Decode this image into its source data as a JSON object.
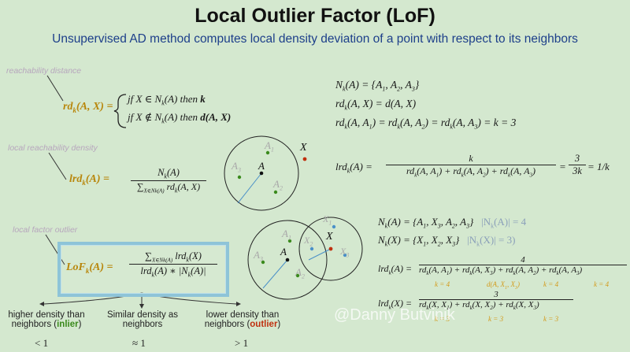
{
  "title": "Local Outlier Factor (LoF)",
  "subtitle": "Unsupervised AD method computes local density deviation of a point with respect to its neighbors",
  "notes": {
    "reachability": "reachability distance",
    "lrd": "local reachability density",
    "lof": "local factor outlier"
  },
  "rd_formula": {
    "lhs": "rd",
    "sub": "k",
    "args": "(A, X) =",
    "case1": "jf X ∈ N",
    "case1_tail": "(A) then",
    "case1_end": "k",
    "case2": "jf X ∉ N",
    "case2_tail": "(A) then",
    "case2_end": "d(A, X)"
  },
  "lrd_formula": {
    "lhs": "lrd",
    "args": "(A) =",
    "num": "N",
    "num_tail": "(A)",
    "den": "∑",
    "den_sub": "X∈N",
    "den_sub2": "k(A)",
    "den_tail": "rd",
    "den_args": "(A, X)"
  },
  "lof_formula": {
    "lhs": "LoF",
    "args": "(A) =",
    "num": "∑",
    "num_sub": "X∈N",
    "num_sub2": "k(A)",
    "num_tail": "lrd",
    "num_args": "(X)",
    "den": "lrd",
    "den_args": "(A) ∗ |N",
    "den_end": "(A)|"
  },
  "right_top": {
    "line1": "N",
    "line1b": "(A) = {A",
    "line1c": ", A",
    "line1d": ", A",
    "line1e": "}",
    "line2": "rd",
    "line2b": "(A, X) = d(A, X)",
    "line3a": "rd",
    "line3b": "(A, A",
    "line3c": ") = rd",
    "line3d": "(A, A",
    "line3e": ") = rd",
    "line3f": "(A, A",
    "line3g": ") = k = 3"
  },
  "right_lrd": {
    "lhs": "lrd",
    "args": "(A) =",
    "num": "k",
    "den": "rd",
    "den_parts": "(A, A",
    "plus": ") + rd",
    "end": ")",
    "eq": "=",
    "frac2_num": "3",
    "frac2_den": "3k",
    "result": "= 1/k"
  },
  "right_mid": {
    "line1": "N",
    "line1b": "(A) = {A",
    "line1c": ", X",
    "line1d": ", A",
    "line1e": ", A",
    "line1f": "}",
    "line1_card": "|N",
    "line1_card_tail": "(A)| = 4",
    "line2": "N",
    "line2b": "(X) = {X",
    "line2c": ", X",
    "line2d": ", X",
    "line2e": "}",
    "line2_card": "|N",
    "line2_card_tail": "(X)| = 3)"
  },
  "right_lrd_A": {
    "lhs": "lrd",
    "args": "(A) =",
    "num": "4",
    "den": "rd",
    "t1": "(A, A",
    "t2": ") + rd",
    "t3": "(A, X",
    "t4": "(A, A",
    "t5": "(A, A",
    "under": [
      "k = 4",
      "d(A, X",
      "k = 4",
      "k = 4"
    ]
  },
  "right_lrd_X": {
    "lhs": "lrd",
    "args": "(X) =",
    "num": "3",
    "den": "rd",
    "t1": "(X, X",
    "t2": ") + rd",
    "t3": "(X, X",
    "under": [
      "k = 3",
      "k = 3",
      "k = 3"
    ]
  },
  "captions": {
    "higher1": "higher density than",
    "higher2": "neighbors (",
    "higher_word": "inlier",
    "higher3": ")",
    "similar1": "Similar density as",
    "similar2": "neighbors",
    "lower1": "lower density than",
    "lower2": "neighbors (",
    "lower_word": "outlier",
    "lower3": ")",
    "lt": "< 1",
    "approx": "≈ 1",
    "gt": "> 1"
  },
  "diagram1": {
    "A": "A",
    "A1": "A",
    "A2": "A",
    "A3": "A",
    "X": "X",
    "s1": "1",
    "s2": "2",
    "s3": "3"
  },
  "diagram2": {
    "A": "A",
    "A1": "A",
    "A2": "A",
    "A3": "A",
    "X": "X",
    "X1": "X",
    "X2": "X",
    "X3": "X",
    "s1": "1",
    "s2": "2",
    "s3": "3"
  },
  "watermark": "@Danny Butvinik",
  "sub": {
    "k": "k",
    "one": "1",
    "two": "2",
    "three": "3"
  },
  "colors": {
    "background": "#d4e8cf",
    "accent_gold": "#b8860b",
    "subtitle_blue": "#1d3f8a",
    "inlier_green": "#3a8a1c",
    "outlier_red": "#c0300f",
    "box_blue": "#8ec4d8"
  }
}
